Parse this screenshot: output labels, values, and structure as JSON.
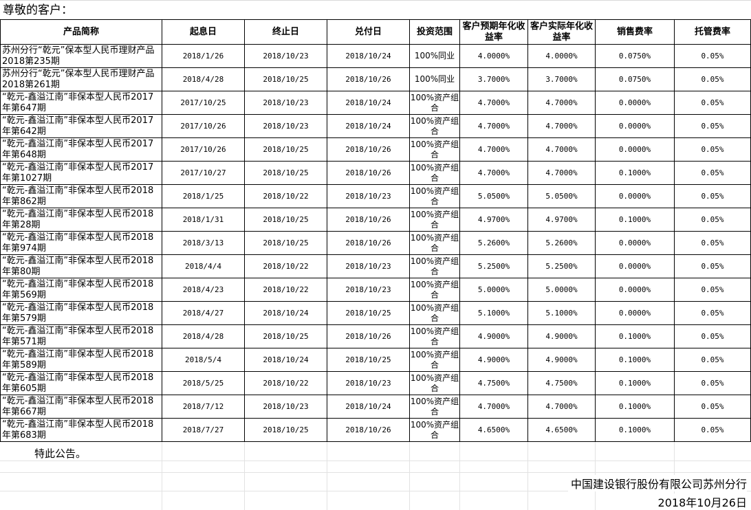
{
  "greeting": "尊敬的客户：",
  "headers": [
    "产品简称",
    "起息日",
    "终止日",
    "兑付日",
    "投资范围",
    "客户预期年化收益率",
    "客户实际年化收益率",
    "销售费率",
    "托管费率"
  ],
  "rows": [
    {
      "name": "苏州分行“乾元”保本型人民币理财产品2018第235期",
      "start": "2018/1/26",
      "end": "2018/10/23",
      "pay": "2018/10/24",
      "scope": "100%同业",
      "expected": "4.0000%",
      "actual": "4.0000%",
      "sales_fee": "0.0750%",
      "custody_fee": "0.05%"
    },
    {
      "name": "苏州分行“乾元”保本型人民币理财产品2018第261期",
      "start": "2018/4/28",
      "end": "2018/10/25",
      "pay": "2018/10/26",
      "scope": "100%同业",
      "expected": "3.7000%",
      "actual": "3.7000%",
      "sales_fee": "0.0750%",
      "custody_fee": "0.05%"
    },
    {
      "name": "“乾元-鑫溢江南”非保本型人民币2017年第647期",
      "start": "2017/10/25",
      "end": "2018/10/23",
      "pay": "2018/10/24",
      "scope": "100%资产组合",
      "expected": "4.7000%",
      "actual": "4.7000%",
      "sales_fee": "0.0000%",
      "custody_fee": "0.05%"
    },
    {
      "name": "“乾元-鑫溢江南”非保本型人民币2017年第642期",
      "start": "2017/10/26",
      "end": "2018/10/23",
      "pay": "2018/10/24",
      "scope": "100%资产组合",
      "expected": "4.7000%",
      "actual": "4.7000%",
      "sales_fee": "0.0000%",
      "custody_fee": "0.05%"
    },
    {
      "name": "“乾元-鑫溢江南”非保本型人民币2017年第648期",
      "start": "2017/10/26",
      "end": "2018/10/25",
      "pay": "2018/10/26",
      "scope": "100%资产组合",
      "expected": "4.7000%",
      "actual": "4.7000%",
      "sales_fee": "0.0000%",
      "custody_fee": "0.05%"
    },
    {
      "name": "“乾元-鑫溢江南”非保本型人民币2017年第1027期",
      "start": "2017/10/27",
      "end": "2018/10/25",
      "pay": "2018/10/26",
      "scope": "100%资产组合",
      "expected": "4.7000%",
      "actual": "4.7000%",
      "sales_fee": "0.1000%",
      "custody_fee": "0.05%"
    },
    {
      "name": "“乾元-鑫溢江南”非保本型人民币2018年第862期",
      "start": "2018/1/25",
      "end": "2018/10/22",
      "pay": "2018/10/23",
      "scope": "100%资产组合",
      "expected": "5.0500%",
      "actual": "5.0500%",
      "sales_fee": "0.0000%",
      "custody_fee": "0.05%"
    },
    {
      "name": "“乾元-鑫溢江南”非保本型人民币2018年第28期",
      "start": "2018/1/31",
      "end": "2018/10/25",
      "pay": "2018/10/26",
      "scope": "100%资产组合",
      "expected": "4.9700%",
      "actual": "4.9700%",
      "sales_fee": "0.1000%",
      "custody_fee": "0.05%"
    },
    {
      "name": "“乾元-鑫溢江南”非保本型人民币2018年第974期",
      "start": "2018/3/13",
      "end": "2018/10/25",
      "pay": "2018/10/26",
      "scope": "100%资产组合",
      "expected": "5.2600%",
      "actual": "5.2600%",
      "sales_fee": "0.0000%",
      "custody_fee": "0.05%"
    },
    {
      "name": "“乾元-鑫溢江南”非保本型人民币2018年第80期",
      "start": "2018/4/4",
      "end": "2018/10/22",
      "pay": "2018/10/23",
      "scope": "100%资产组合",
      "expected": "5.2500%",
      "actual": "5.2500%",
      "sales_fee": "0.0000%",
      "custody_fee": "0.05%"
    },
    {
      "name": "“乾元-鑫溢江南”非保本型人民币2018年第569期",
      "start": "2018/4/23",
      "end": "2018/10/22",
      "pay": "2018/10/23",
      "scope": "100%资产组合",
      "expected": "5.0000%",
      "actual": "5.0000%",
      "sales_fee": "0.0000%",
      "custody_fee": "0.05%"
    },
    {
      "name": "“乾元-鑫溢江南”非保本型人民币2018年第579期",
      "start": "2018/4/27",
      "end": "2018/10/24",
      "pay": "2018/10/25",
      "scope": "100%资产组合",
      "expected": "5.1000%",
      "actual": "5.1000%",
      "sales_fee": "0.0000%",
      "custody_fee": "0.05%"
    },
    {
      "name": "“乾元-鑫溢江南”非保本型人民币2018年第571期",
      "start": "2018/4/28",
      "end": "2018/10/25",
      "pay": "2018/10/26",
      "scope": "100%资产组合",
      "expected": "4.9000%",
      "actual": "4.9000%",
      "sales_fee": "0.1000%",
      "custody_fee": "0.05%"
    },
    {
      "name": "“乾元-鑫溢江南”非保本型人民币2018年第589期",
      "start": "2018/5/4",
      "end": "2018/10/24",
      "pay": "2018/10/25",
      "scope": "100%资产组合",
      "expected": "4.9000%",
      "actual": "4.9000%",
      "sales_fee": "0.1000%",
      "custody_fee": "0.05%"
    },
    {
      "name": "“乾元-鑫溢江南”非保本型人民币2018年第605期",
      "start": "2018/5/25",
      "end": "2018/10/22",
      "pay": "2018/10/23",
      "scope": "100%资产组合",
      "expected": "4.7500%",
      "actual": "4.7500%",
      "sales_fee": "0.1000%",
      "custody_fee": "0.05%"
    },
    {
      "name": "“乾元-鑫溢江南”非保本型人民币2018年第667期",
      "start": "2018/7/12",
      "end": "2018/10/23",
      "pay": "2018/10/24",
      "scope": "100%资产组合",
      "expected": "4.7000%",
      "actual": "4.7000%",
      "sales_fee": "0.1000%",
      "custody_fee": "0.05%"
    },
    {
      "name": "“乾元-鑫溢江南”非保本型人民币2018年第683期",
      "start": "2018/7/27",
      "end": "2018/10/25",
      "pay": "2018/10/26",
      "scope": "100%资产组合",
      "expected": "4.6500%",
      "actual": "4.6500%",
      "sales_fee": "0.1000%",
      "custody_fee": "0.05%"
    }
  ],
  "footer": {
    "notice": "特此公告。",
    "bank": "中国建设银行股份有限公司苏州分行",
    "date": "2018年10月26日"
  }
}
